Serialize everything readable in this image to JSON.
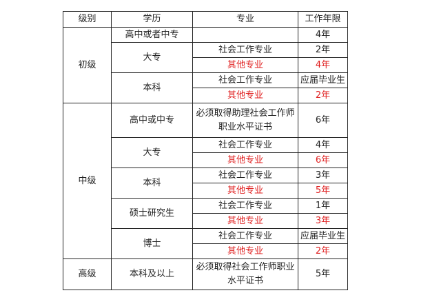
{
  "colors": {
    "text": "#222222",
    "highlight": "#e02020",
    "border": "#222222"
  },
  "headers": [
    "级别",
    "学历",
    "专业",
    "工作年限"
  ],
  "levels": [
    {
      "level": "初级",
      "groups": [
        {
          "education": "高中或者中专",
          "rows": [
            {
              "major": "",
              "years": "4年",
              "highlight": false
            }
          ]
        },
        {
          "education": "大专",
          "rows": [
            {
              "major": "社会工作专业",
              "years": "2年",
              "highlight": false
            },
            {
              "major": "其他专业",
              "years": "4年",
              "highlight": true
            }
          ]
        },
        {
          "education": "本科",
          "rows": [
            {
              "major": "社会工作专业",
              "years": "应届毕业生",
              "highlight": false
            },
            {
              "major": "其他专业",
              "years": "2年",
              "highlight": true
            }
          ]
        }
      ]
    },
    {
      "level": "中级",
      "groups": [
        {
          "education": "高中或中专",
          "rows": [
            {
              "major": "必须取得助理社会工作师职业水平证书",
              "years": "6年",
              "highlight": false,
              "tall": true
            }
          ]
        },
        {
          "education": "大专",
          "rows": [
            {
              "major": "社会工作专业",
              "years": "4年",
              "highlight": false
            },
            {
              "major": "其他专业",
              "years": "6年",
              "highlight": true
            }
          ]
        },
        {
          "education": "本科",
          "rows": [
            {
              "major": "社会工作专业",
              "years": "3年",
              "highlight": false
            },
            {
              "major": "其他专业",
              "years": "5年",
              "highlight": true
            }
          ]
        },
        {
          "education": "硕士研究生",
          "rows": [
            {
              "major": "社会工作专业",
              "years": "1年",
              "highlight": false
            },
            {
              "major": "其他专业",
              "years": "3年",
              "highlight": true
            }
          ]
        },
        {
          "education": "博士",
          "rows": [
            {
              "major": "社会工作专业",
              "years": "应届毕业生",
              "highlight": false
            },
            {
              "major": "其他专业",
              "years": "2年",
              "highlight": true
            }
          ]
        }
      ]
    },
    {
      "level": "高级",
      "groups": [
        {
          "education": "本科及以上",
          "rows": [
            {
              "major": "必须取得社会工作师职业水平证书",
              "years": "5年",
              "highlight": false,
              "tall2": true
            }
          ]
        }
      ]
    }
  ]
}
